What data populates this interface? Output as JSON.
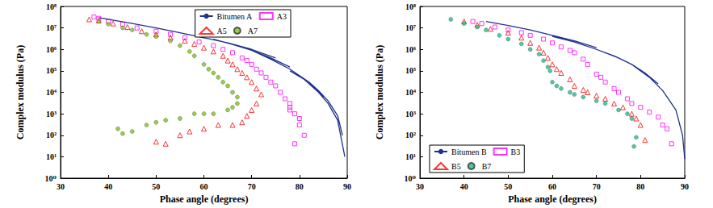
{
  "chart_data": [
    {
      "type": "scatter",
      "xlabel": "Phase angle (degrees)",
      "ylabel": "Complex modulus (Pa)",
      "xlim": [
        30,
        90
      ],
      "xticks": [
        30,
        40,
        50,
        60,
        70,
        80,
        90
      ],
      "ylim": [
        1,
        100000000.0
      ],
      "yticks": [
        {
          "value": 1,
          "label": "10⁰"
        },
        {
          "value": 10,
          "label": "10¹"
        },
        {
          "value": 100,
          "label": "10²"
        },
        {
          "value": 1000,
          "label": "10³"
        },
        {
          "value": 10000,
          "label": "10⁴"
        },
        {
          "value": 100000,
          "label": "10⁵"
        },
        {
          "value": 1000000,
          "label": "10⁶"
        },
        {
          "value": 10000000,
          "label": "10⁷"
        },
        {
          "value": 100000000,
          "label": "10⁸"
        }
      ],
      "log": "y",
      "grid": false,
      "legend": "upper right",
      "series": [
        {
          "name": "Bitumen A",
          "type": "line",
          "color": "#1f2f8f",
          "line_style": "solid",
          "x": [
            38,
            45,
            50,
            55,
            60,
            65,
            70,
            75,
            null,
            62,
            66,
            70,
            74,
            78,
            null,
            70,
            74,
            78,
            82,
            85,
            null,
            78,
            81,
            84,
            86,
            88,
            89.5,
            null,
            82,
            84,
            86,
            88,
            89
          ],
          "values": [
            30000000.0,
            16000000.0,
            10000000.0,
            6000000.0,
            3500000.0,
            2000000.0,
            1000000.0,
            400000.0,
            null,
            3000000.0,
            1700000.0,
            900000.0,
            400000.0,
            150000.0,
            null,
            900000.0,
            350000.0,
            120000.0,
            30000.0,
            6000.0,
            null,
            100000.0,
            40000.0,
            10000.0,
            3000.0,
            500.0,
            10,
            null,
            30000.0,
            12000.0,
            4000.0,
            800.0,
            100.0
          ]
        },
        {
          "name": "A3",
          "type": "scatter",
          "color": "#ff00ff",
          "marker": "open_square",
          "x": [
            37,
            38,
            40,
            43,
            46,
            50,
            53,
            56,
            59,
            62,
            64,
            66,
            68,
            69,
            70,
            71,
            72,
            73,
            74,
            75,
            76,
            77,
            78,
            78,
            79,
            80,
            80,
            81,
            79,
            78
          ],
          "values": [
            32000000.0,
            28000000.0,
            20000000.0,
            15000000.0,
            10000000.0,
            7000000.0,
            5000000.0,
            3500000.0,
            2200000.0,
            1500000.0,
            1000000.0,
            700000.0,
            400000.0,
            300000.0,
            200000.0,
            120000.0,
            80000.0,
            50000.0,
            30000.0,
            20000.0,
            10000.0,
            5000.0,
            3000.0,
            2000.0,
            1000.0,
            600.0,
            300.0,
            100.0,
            40,
            1500.0
          ]
        },
        {
          "name": "A5",
          "type": "scatter",
          "color": "#ff0000",
          "marker": "open_triangle",
          "x": [
            36,
            38,
            41,
            44,
            47,
            50,
            53,
            56,
            58,
            60,
            62,
            64,
            65,
            66,
            67,
            68,
            69,
            70,
            71,
            72,
            71,
            70,
            69,
            68,
            66,
            63,
            60,
            57,
            55,
            52,
            50
          ],
          "values": [
            25000000.0,
            22000000.0,
            16000000.0,
            11000000.0,
            7000000.0,
            5000000.0,
            3500000.0,
            2500000.0,
            1800000.0,
            1200000.0,
            800000.0,
            500000.0,
            300000.0,
            200000.0,
            120000.0,
            80000.0,
            50000.0,
            30000.0,
            15000.0,
            8000.0,
            3000.0,
            1500.0,
            800.0,
            400.0,
            300.0,
            300.0,
            200.0,
            150.0,
            100.0,
            40,
            50
          ]
        },
        {
          "name": "A7",
          "type": "scatter",
          "color": "#7fc31c",
          "marker": "circle",
          "x": [
            38,
            40,
            43,
            45,
            48,
            50,
            53,
            55,
            57,
            58,
            60,
            61,
            62,
            63,
            64,
            65,
            66,
            67,
            67,
            66,
            65,
            62,
            60,
            58,
            55,
            52,
            50,
            48,
            45,
            43,
            42
          ],
          "values": [
            20000000.0,
            15000000.0,
            10000000.0,
            8000000.0,
            5000000.0,
            4000000.0,
            2500000.0,
            1500000.0,
            800000.0,
            500000.0,
            200000.0,
            120000.0,
            80000.0,
            50000.0,
            30000.0,
            20000.0,
            10000.0,
            6000.0,
            3000.0,
            2000.0,
            1500.0,
            1000.0,
            1000.0,
            1000.0,
            600.0,
            500.0,
            400.0,
            300.0,
            150.0,
            120.0,
            200.0
          ]
        }
      ]
    },
    {
      "type": "scatter",
      "xlabel": "Phase angle (degrees)",
      "ylabel": "Complex modulus (Pa)",
      "xlim": [
        30,
        90
      ],
      "xticks": [
        30,
        40,
        50,
        60,
        70,
        80,
        90
      ],
      "ylim": [
        1,
        100000000.0
      ],
      "yticks": [
        {
          "value": 1,
          "label": "10⁰"
        },
        {
          "value": 10,
          "label": "10¹"
        },
        {
          "value": 100,
          "label": "10²"
        },
        {
          "value": 1000,
          "label": "10³"
        },
        {
          "value": 10000,
          "label": "10⁴"
        },
        {
          "value": 100000,
          "label": "10⁵"
        },
        {
          "value": 1000000,
          "label": "10⁶"
        },
        {
          "value": 10000000,
          "label": "10⁷"
        },
        {
          "value": 100000000,
          "label": "10⁸"
        }
      ],
      "log": "y",
      "grid": false,
      "legend": "lower left",
      "series": [
        {
          "name": "Bitumen B",
          "type": "line",
          "color": "#1f2f8f",
          "line_style": "solid",
          "x": [
            45,
            50,
            55,
            60,
            65,
            70,
            null,
            60,
            65,
            70,
            75,
            78,
            null,
            70,
            74,
            78,
            81,
            84,
            null,
            78,
            82,
            85,
            88,
            89.5,
            90
          ],
          "values": [
            20000000.0,
            13000000.0,
            8000000.0,
            4500000.0,
            2500000.0,
            1200000.0,
            null,
            4000000.0,
            2200000.0,
            1000000.0,
            400000.0,
            200000.0,
            null,
            1000000.0,
            500000.0,
            200000.0,
            80000.0,
            25000.0,
            null,
            200000.0,
            50000.0,
            12000.0,
            1500.0,
            100.0,
            8
          ]
        },
        {
          "name": "B3",
          "type": "scatter",
          "color": "#ff00ff",
          "marker": "open_square",
          "x": [
            42,
            44,
            47,
            50,
            53,
            55,
            58,
            60,
            62,
            64,
            65,
            67,
            68,
            70,
            71,
            72,
            74,
            75,
            77,
            78,
            80,
            82,
            84,
            85,
            86,
            87
          ],
          "values": [
            20000000.0,
            16000000.0,
            11000000.0,
            8000000.0,
            6000000.0,
            4500000.0,
            3000000.0,
            2000000.0,
            1300000.0,
            900000.0,
            700000.0,
            350000.0,
            200000.0,
            70000.0,
            50000.0,
            30000.0,
            15000.0,
            10000.0,
            5000.0,
            3000.0,
            2000.0,
            1200.0,
            700.0,
            300.0,
            200.0,
            40
          ]
        },
        {
          "name": "B5",
          "type": "scatter",
          "color": "#ff0000",
          "marker": "open_triangle",
          "x": [
            40,
            43,
            46,
            50,
            53,
            55,
            57,
            58,
            59,
            60,
            61,
            62,
            64,
            65,
            67,
            68,
            70,
            72,
            74,
            76,
            78,
            79,
            80,
            81
          ],
          "values": [
            20000000.0,
            14000000.0,
            9000000.0,
            6000000.0,
            3500000.0,
            2000000.0,
            1200000.0,
            700000.0,
            400000.0,
            200000.0,
            120000.0,
            80000.0,
            40000.0,
            20000.0,
            13000.0,
            10000.0,
            7000.0,
            5000.0,
            3000.0,
            2000.0,
            1000.0,
            600.0,
            300.0,
            60
          ]
        },
        {
          "name": "B7",
          "type": "scatter",
          "color": "#1fbf8f",
          "marker": "circle",
          "x": [
            37,
            40,
            43,
            45,
            48,
            50,
            53,
            55,
            57,
            58,
            59,
            59.5,
            60,
            61,
            62,
            64,
            65,
            67,
            70,
            72,
            75,
            77,
            78,
            79,
            78.5
          ],
          "values": [
            25000000.0,
            16000000.0,
            11000000.0,
            8000000.0,
            4500000.0,
            3000000.0,
            1800000.0,
            1000000.0,
            600000.0,
            300000.0,
            150000.0,
            100000.0,
            30000.0,
            20000.0,
            15000.0,
            10000.0,
            8000.0,
            6000.0,
            4000.0,
            3000.0,
            1500.0,
            1000.0,
            600.0,
            80,
            30
          ]
        }
      ]
    }
  ]
}
